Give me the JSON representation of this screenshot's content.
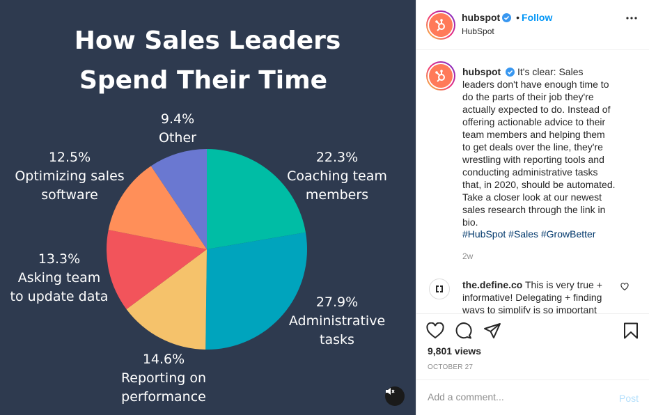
{
  "post": {
    "username": "hubspot",
    "follow_label": "Follow",
    "dot": "•",
    "location": "HubSpot",
    "caption": "It's clear: Sales leaders don't have enough time to do the parts of their job they're actually expected to do. Instead of offering actionable advice to their team members and helping them to get deals over the line, they're wrestling with reporting tools and conducting administrative tasks that, in 2020, should be automated. Take a closer look at our newest sales research through the link in bio.",
    "hashtags": [
      "#HubSpot",
      "#Sales",
      "#GrowBetter"
    ],
    "age": "2w",
    "views": "9,801 views",
    "date": "OCTOBER 27"
  },
  "comment": {
    "username": "the.define.co",
    "text": "This is very true + informative! Delegating + finding ways to simplify is so important"
  },
  "add_comment": {
    "placeholder": "Add a comment...",
    "post_label": "Post"
  },
  "colors": {
    "background": "#2e3a4f",
    "accent": "#0095f6",
    "brand": "#ff7a59"
  },
  "icons": [
    "verified-icon",
    "more-icon",
    "heart-icon",
    "comment-icon",
    "share-icon",
    "bookmark-icon",
    "mute-icon",
    "hubspot-logo-icon"
  ],
  "chart_data": {
    "type": "pie",
    "title": "How Sales Leaders Spend Their Time",
    "title_lines": [
      "How Sales Leaders",
      "Spend Their Time"
    ],
    "slices": [
      {
        "label": "Coaching team members",
        "label_lines": [
          "Coaching team",
          "members"
        ],
        "value": 22.3,
        "value_label": "22.3%",
        "color": "#00bda5"
      },
      {
        "label": "Administrative tasks",
        "label_lines": [
          "Administrative",
          "tasks"
        ],
        "value": 27.9,
        "value_label": "27.9%",
        "color": "#00a4bd"
      },
      {
        "label": "Reporting on performance",
        "label_lines": [
          "Reporting on",
          "performance"
        ],
        "value": 14.6,
        "value_label": "14.6%",
        "color": "#f5c26b"
      },
      {
        "label": "Asking team to update data",
        "label_lines": [
          "Asking team",
          "to update data"
        ],
        "value": 13.3,
        "value_label": "13.3%",
        "color": "#f2545b"
      },
      {
        "label": "Optimizing sales software",
        "label_lines": [
          "Optimizing sales",
          "software"
        ],
        "value": 12.5,
        "value_label": "12.5%",
        "color": "#ff8f59"
      },
      {
        "label": "Other",
        "label_lines": [
          "Other"
        ],
        "value": 9.4,
        "value_label": "9.4%",
        "color": "#6a78d1"
      }
    ]
  }
}
